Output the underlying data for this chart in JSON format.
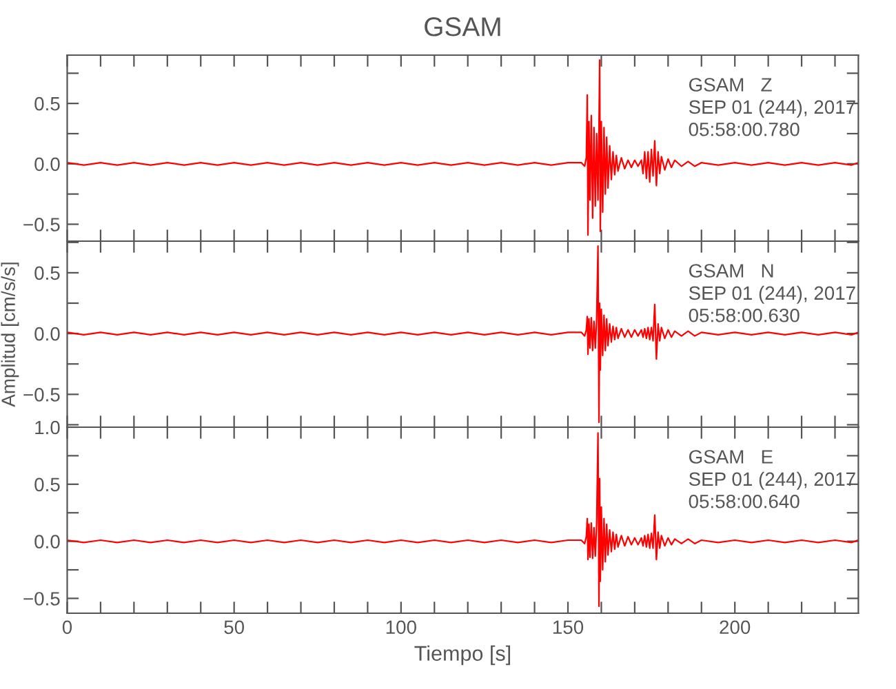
{
  "chart_data": [
    {
      "type": "line",
      "title": "GSAM",
      "annotations": [
        "GSAM   Z",
        "SEP 01 (244), 2017",
        "05:58:00.780"
      ],
      "tick_labels": "y",
      "xlim": [
        0,
        237
      ],
      "ylim": [
        -0.64,
        0.9
      ],
      "xticks": [
        {
          "value": 0,
          "label": null
        },
        {
          "value": 10,
          "label": null
        },
        {
          "value": 20,
          "label": null
        },
        {
          "value": 30,
          "label": null
        },
        {
          "value": 40,
          "label": null
        },
        {
          "value": 50,
          "label": null
        },
        {
          "value": 60,
          "label": null
        },
        {
          "value": 70,
          "label": null
        },
        {
          "value": 80,
          "label": null
        },
        {
          "value": 90,
          "label": null
        },
        {
          "value": 100,
          "label": null
        },
        {
          "value": 110,
          "label": null
        },
        {
          "value": 120,
          "label": null
        },
        {
          "value": 130,
          "label": null
        },
        {
          "value": 140,
          "label": null
        },
        {
          "value": 150,
          "label": null
        },
        {
          "value": 160,
          "label": null
        },
        {
          "value": 170,
          "label": null
        },
        {
          "value": 180,
          "label": null
        },
        {
          "value": 190,
          "label": null
        },
        {
          "value": 200,
          "label": null
        },
        {
          "value": 210,
          "label": null
        },
        {
          "value": 220,
          "label": null
        },
        {
          "value": 230,
          "label": null
        }
      ],
      "yticks": [
        {
          "value": -0.5,
          "label": "−0.5"
        },
        {
          "value": -0.25,
          "label": null
        },
        {
          "value": 0,
          "label": "0.0"
        },
        {
          "value": 0.25,
          "label": null
        },
        {
          "value": 0.5,
          "label": "0.5"
        },
        {
          "value": 0.75,
          "label": null
        }
      ],
      "x": [
        0,
        5,
        10,
        15,
        20,
        25,
        30,
        35,
        40,
        45,
        50,
        55,
        60,
        65,
        70,
        75,
        80,
        85,
        90,
        95,
        100,
        105,
        110,
        115,
        120,
        125,
        130,
        135,
        140,
        145,
        150,
        154,
        155,
        155.5,
        155.8,
        156,
        156.3,
        156.6,
        157,
        157.4,
        157.8,
        158.2,
        158.6,
        159,
        159.3,
        159.5,
        159.7,
        160,
        160.4,
        160.8,
        161.2,
        161.6,
        162,
        162.5,
        163,
        163.5,
        164,
        164.5,
        165,
        166,
        167,
        168,
        169,
        170,
        171,
        172,
        172.5,
        173,
        173.5,
        174,
        174.5,
        175,
        175.5,
        176,
        176.5,
        177,
        177.5,
        178,
        179,
        180,
        181,
        182,
        184,
        186,
        188,
        190,
        195,
        200,
        205,
        210,
        215,
        220,
        225,
        230,
        235,
        237
      ],
      "series": [
        {
          "color": "#ff0000",
          "values": [
            0.01,
            -0.01,
            0.01,
            -0.01,
            0.01,
            -0.01,
            0.01,
            -0.01,
            0.01,
            -0.01,
            0.01,
            -0.01,
            0.01,
            -0.01,
            0.01,
            -0.01,
            0.01,
            -0.01,
            0.01,
            -0.01,
            0.01,
            -0.01,
            0.01,
            -0.01,
            0.01,
            -0.01,
            0.01,
            -0.01,
            0.01,
            -0.01,
            0.01,
            0.01,
            -0.02,
            0.05,
            0.57,
            -0.59,
            0.35,
            -0.3,
            0.4,
            -0.45,
            0.3,
            -0.35,
            0.25,
            -0.3,
            0.3,
            0.86,
            -0.56,
            0.35,
            -0.4,
            0.3,
            -0.25,
            0.22,
            -0.2,
            0.15,
            -0.13,
            0.1,
            -0.09,
            0.07,
            -0.06,
            0.05,
            -0.04,
            0.03,
            -0.03,
            0.03,
            -0.02,
            0.03,
            -0.08,
            0.1,
            -0.12,
            0.1,
            -0.15,
            0.12,
            -0.1,
            0.19,
            -0.18,
            0.1,
            -0.08,
            0.06,
            -0.05,
            0.04,
            -0.03,
            0.03,
            -0.02,
            0.02,
            -0.02,
            0.01,
            -0.01,
            0.01,
            -0.01,
            0.01,
            -0.01,
            0.01,
            -0.01,
            0.01,
            -0.01,
            0.01
          ]
        }
      ]
    },
    {
      "type": "line",
      "ylabel": "Amplitud [cm/s/s]",
      "annotations": [
        "GSAM   N",
        "SEP 01 (244), 2017",
        "05:58:00.630"
      ],
      "tick_labels": "y",
      "xlim": [
        0,
        237
      ],
      "ylim": [
        -0.77,
        0.76
      ],
      "xticks": [
        {
          "value": 0,
          "label": null
        },
        {
          "value": 10,
          "label": null
        },
        {
          "value": 20,
          "label": null
        },
        {
          "value": 30,
          "label": null
        },
        {
          "value": 40,
          "label": null
        },
        {
          "value": 50,
          "label": null
        },
        {
          "value": 60,
          "label": null
        },
        {
          "value": 70,
          "label": null
        },
        {
          "value": 80,
          "label": null
        },
        {
          "value": 90,
          "label": null
        },
        {
          "value": 100,
          "label": null
        },
        {
          "value": 110,
          "label": null
        },
        {
          "value": 120,
          "label": null
        },
        {
          "value": 130,
          "label": null
        },
        {
          "value": 140,
          "label": null
        },
        {
          "value": 150,
          "label": null
        },
        {
          "value": 160,
          "label": null
        },
        {
          "value": 170,
          "label": null
        },
        {
          "value": 180,
          "label": null
        },
        {
          "value": 190,
          "label": null
        },
        {
          "value": 200,
          "label": null
        },
        {
          "value": 210,
          "label": null
        },
        {
          "value": 220,
          "label": null
        },
        {
          "value": 230,
          "label": null
        }
      ],
      "yticks": [
        {
          "value": -0.75,
          "label": null
        },
        {
          "value": -0.5,
          "label": "−0.5"
        },
        {
          "value": -0.25,
          "label": null
        },
        {
          "value": 0,
          "label": "0.0"
        },
        {
          "value": 0.25,
          "label": null
        },
        {
          "value": 0.5,
          "label": "0.5"
        },
        {
          "value": 0.75,
          "label": null
        }
      ],
      "x": [
        0,
        5,
        10,
        15,
        20,
        25,
        30,
        35,
        40,
        45,
        50,
        55,
        60,
        65,
        70,
        75,
        80,
        85,
        90,
        95,
        100,
        105,
        110,
        115,
        120,
        125,
        130,
        135,
        140,
        145,
        150,
        154,
        155,
        155.5,
        155.8,
        156,
        156.3,
        156.6,
        157,
        157.4,
        157.8,
        158.2,
        158.6,
        159,
        159.3,
        159.5,
        159.7,
        160,
        160.4,
        160.8,
        161.2,
        161.6,
        162,
        162.5,
        163,
        163.5,
        164,
        164.5,
        165,
        166,
        167,
        168,
        169,
        170,
        171,
        172,
        172.5,
        173,
        173.5,
        174,
        174.5,
        175,
        175.5,
        176,
        176.5,
        177,
        177.5,
        178,
        179,
        180,
        181,
        182,
        184,
        186,
        188,
        190,
        195,
        200,
        205,
        210,
        215,
        220,
        225,
        230,
        235,
        237
      ],
      "series": [
        {
          "color": "#ff0000",
          "values": [
            0.01,
            -0.01,
            0.01,
            -0.01,
            0.01,
            -0.01,
            0.01,
            -0.01,
            0.01,
            -0.01,
            0.01,
            -0.01,
            0.01,
            -0.01,
            0.01,
            -0.01,
            0.01,
            -0.01,
            0.01,
            -0.01,
            0.01,
            -0.01,
            0.01,
            -0.01,
            0.01,
            -0.01,
            0.01,
            -0.01,
            0.01,
            -0.01,
            0.01,
            0.01,
            -0.02,
            0.03,
            0.14,
            -0.17,
            0.12,
            -0.12,
            0.13,
            -0.14,
            0.1,
            -0.12,
            0.12,
            0.72,
            -0.73,
            0.25,
            -0.3,
            0.2,
            -0.18,
            0.15,
            -0.14,
            0.12,
            -0.1,
            0.08,
            -0.07,
            0.06,
            -0.05,
            0.05,
            -0.04,
            0.04,
            -0.03,
            0.03,
            -0.03,
            0.03,
            -0.02,
            0.03,
            -0.03,
            0.04,
            -0.04,
            0.05,
            -0.05,
            0.05,
            -0.06,
            0.24,
            -0.21,
            0.08,
            -0.06,
            0.05,
            -0.04,
            0.03,
            -0.03,
            0.02,
            -0.02,
            0.02,
            -0.02,
            0.01,
            -0.01,
            0.01,
            -0.01,
            0.01,
            -0.01,
            0.01,
            -0.01,
            0.01,
            -0.01,
            0.01
          ]
        }
      ]
    },
    {
      "type": "line",
      "xlabel": "Tiempo [s]",
      "annotations": [
        "GSAM   E",
        "SEP 01 (244), 2017",
        "05:58:00.640"
      ],
      "xlim": [
        0,
        237
      ],
      "ylim": [
        -0.63,
        1.0
      ],
      "xticks": [
        0,
        {
          "value": 10,
          "label": null
        },
        {
          "value": 20,
          "label": null
        },
        {
          "value": 30,
          "label": null
        },
        {
          "value": 40,
          "label": null
        },
        50,
        {
          "value": 60,
          "label": null
        },
        {
          "value": 70,
          "label": null
        },
        {
          "value": 80,
          "label": null
        },
        {
          "value": 90,
          "label": null
        },
        100,
        {
          "value": 110,
          "label": null
        },
        {
          "value": 120,
          "label": null
        },
        {
          "value": 130,
          "label": null
        },
        {
          "value": 140,
          "label": null
        },
        150,
        {
          "value": 160,
          "label": null
        },
        {
          "value": 170,
          "label": null
        },
        {
          "value": 180,
          "label": null
        },
        {
          "value": 190,
          "label": null
        },
        200,
        {
          "value": 210,
          "label": null
        },
        {
          "value": 220,
          "label": null
        },
        {
          "value": 230,
          "label": null
        }
      ],
      "yticks": [
        {
          "value": -0.5,
          "label": "−0.5"
        },
        {
          "value": -0.25,
          "label": null
        },
        {
          "value": 0,
          "label": "0.0"
        },
        {
          "value": 0.25,
          "label": null
        },
        {
          "value": 0.5,
          "label": "0.5"
        },
        {
          "value": 0.75,
          "label": null
        },
        {
          "value": 1.0,
          "label": "1.0"
        }
      ],
      "x": [
        0,
        5,
        10,
        15,
        20,
        25,
        30,
        35,
        40,
        45,
        50,
        55,
        60,
        65,
        70,
        75,
        80,
        85,
        90,
        95,
        100,
        105,
        110,
        115,
        120,
        125,
        130,
        135,
        140,
        145,
        150,
        154,
        155,
        155.5,
        155.8,
        156,
        156.3,
        156.6,
        157,
        157.4,
        157.8,
        158.2,
        158.6,
        159,
        159.3,
        159.5,
        159.7,
        160,
        160.4,
        160.8,
        161.2,
        161.6,
        162,
        162.5,
        163,
        163.5,
        164,
        164.5,
        165,
        166,
        167,
        168,
        169,
        170,
        171,
        172,
        172.5,
        173,
        173.5,
        174,
        174.5,
        175,
        175.5,
        176,
        176.5,
        177,
        177.5,
        178,
        179,
        180,
        181,
        182,
        184,
        186,
        188,
        190,
        195,
        200,
        205,
        210,
        215,
        220,
        225,
        230,
        235,
        237
      ],
      "series": [
        {
          "color": "#ff0000",
          "values": [
            0.01,
            -0.01,
            0.01,
            -0.01,
            0.01,
            -0.01,
            0.01,
            -0.01,
            0.01,
            -0.01,
            0.01,
            -0.01,
            0.01,
            -0.01,
            0.01,
            -0.01,
            0.01,
            -0.01,
            0.01,
            -0.01,
            0.01,
            -0.01,
            0.01,
            -0.01,
            0.01,
            -0.01,
            0.01,
            -0.01,
            0.01,
            -0.01,
            0.01,
            0.01,
            -0.02,
            0.04,
            0.2,
            -0.16,
            0.15,
            -0.14,
            0.16,
            -0.15,
            0.12,
            -0.13,
            0.15,
            0.95,
            -0.57,
            0.55,
            -0.35,
            0.3,
            -0.25,
            0.2,
            -0.18,
            0.15,
            -0.12,
            0.1,
            -0.09,
            0.08,
            -0.07,
            0.06,
            -0.05,
            0.05,
            -0.04,
            0.04,
            -0.03,
            0.03,
            -0.03,
            0.03,
            -0.04,
            0.05,
            -0.05,
            0.06,
            -0.06,
            0.07,
            -0.06,
            0.23,
            -0.16,
            0.08,
            -0.06,
            0.05,
            -0.04,
            0.03,
            -0.03,
            0.02,
            -0.02,
            0.02,
            -0.02,
            0.01,
            -0.01,
            0.01,
            -0.01,
            0.01,
            -0.01,
            0.01,
            -0.01,
            0.01,
            -0.01,
            0.01
          ]
        }
      ]
    }
  ]
}
